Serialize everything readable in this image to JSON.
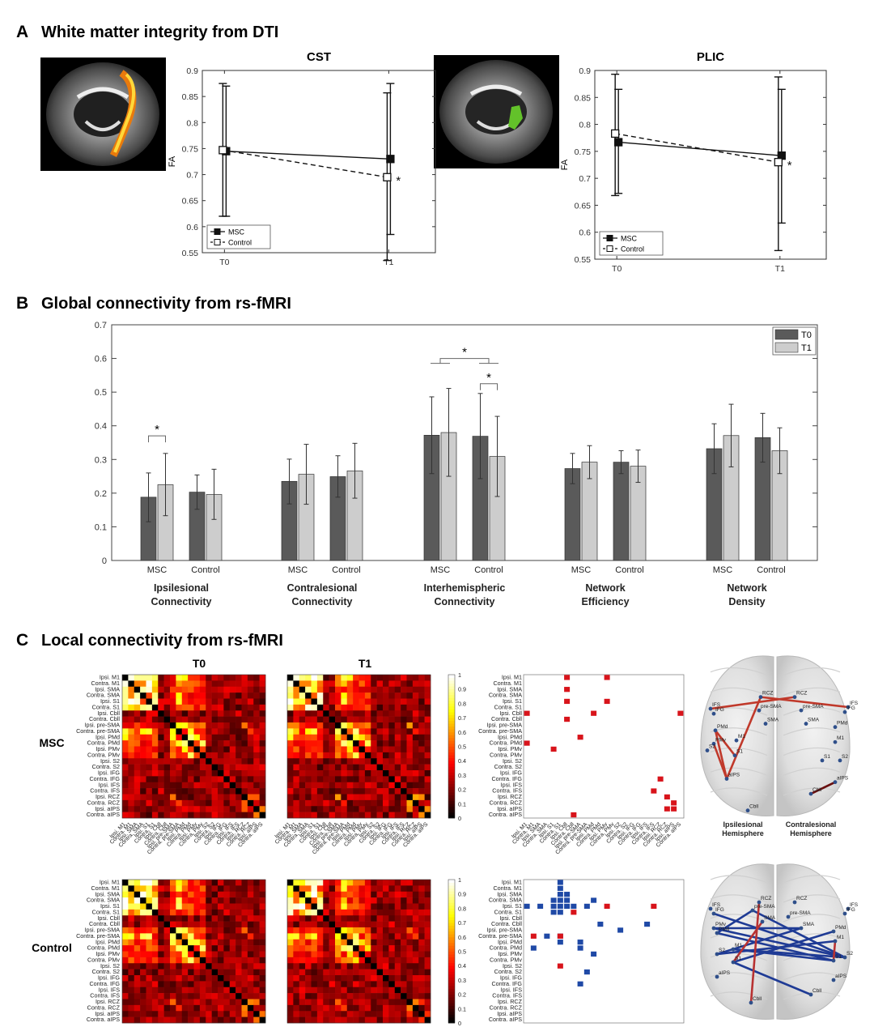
{
  "panels": {
    "A": {
      "letter": "A",
      "title": "White matter integrity from DTI"
    },
    "B": {
      "letter": "B",
      "title": "Global connectivity from rs-fMRI"
    },
    "C": {
      "letter": "C",
      "title": "Local connectivity from rs-fMRI"
    }
  },
  "chart_data": [
    {
      "id": "cst",
      "type": "line",
      "title": "CST",
      "ylabel": "FA",
      "categories": [
        "T0",
        "T1"
      ],
      "ylim": [
        0.55,
        0.9
      ],
      "yticks": [
        0.55,
        0.6,
        0.65,
        0.7,
        0.75,
        0.8,
        0.85,
        0.9
      ],
      "series": [
        {
          "name": "MSC",
          "values": [
            0.745,
            0.73
          ],
          "err_low": [
            0.62,
            0.585
          ],
          "err_high": [
            0.87,
            0.875
          ],
          "line": "solid",
          "marker": "filled-square"
        },
        {
          "name": "Control",
          "values": [
            0.747,
            0.695
          ],
          "err_low": [
            0.62,
            0.535
          ],
          "err_high": [
            0.875,
            0.857
          ],
          "line": "dashed",
          "marker": "open-square"
        }
      ],
      "annotations": [
        {
          "text": "*",
          "at": "T1"
        }
      ],
      "legend_position": "bottom-left"
    },
    {
      "id": "plic",
      "type": "line",
      "title": "PLIC",
      "ylabel": "FA",
      "categories": [
        "T0",
        "T1"
      ],
      "ylim": [
        0.55,
        0.9
      ],
      "yticks": [
        0.55,
        0.6,
        0.65,
        0.7,
        0.75,
        0.8,
        0.85,
        0.9
      ],
      "series": [
        {
          "name": "MSC",
          "values": [
            0.767,
            0.742
          ],
          "err_low": [
            0.672,
            0.617
          ],
          "err_high": [
            0.865,
            0.865
          ],
          "line": "solid",
          "marker": "filled-square"
        },
        {
          "name": "Control",
          "values": [
            0.783,
            0.73
          ],
          "err_low": [
            0.668,
            0.566
          ],
          "err_high": [
            0.893,
            0.888
          ],
          "line": "dashed",
          "marker": "open-square"
        }
      ],
      "annotations": [
        {
          "text": "*",
          "at": "T1"
        }
      ],
      "legend_position": "bottom-left"
    },
    {
      "id": "global",
      "type": "bar",
      "ylim": [
        0,
        0.7
      ],
      "yticks": [
        0,
        0.1,
        0.2,
        0.3,
        0.4,
        0.5,
        0.6,
        0.7
      ],
      "legend": [
        "T0",
        "T1"
      ],
      "legend_position": "top-right",
      "groups": [
        {
          "label": [
            "Ipsilesional",
            "Connectivity"
          ],
          "bars": [
            {
              "name": "MSC",
              "t0": 0.188,
              "t0e": [
                0.115,
                0.26
              ],
              "t1": 0.225,
              "t1e": [
                0.133,
                0.318
              ]
            },
            {
              "name": "Control",
              "t0": 0.203,
              "t0e": [
                0.152,
                0.254
              ],
              "t1": 0.196,
              "t1e": [
                0.122,
                0.271
              ]
            }
          ]
        },
        {
          "label": [
            "Contralesional",
            "Connectivity"
          ],
          "bars": [
            {
              "name": "MSC",
              "t0": 0.235,
              "t0e": [
                0.168,
                0.301
              ],
              "t1": 0.256,
              "t1e": [
                0.167,
                0.345
              ]
            },
            {
              "name": "Control",
              "t0": 0.249,
              "t0e": [
                0.188,
                0.311
              ],
              "t1": 0.266,
              "t1e": [
                0.185,
                0.348
              ]
            }
          ]
        },
        {
          "label": [
            "Interhemispheric",
            "Connectivity"
          ],
          "bars": [
            {
              "name": "MSC",
              "t0": 0.372,
              "t0e": [
                0.258,
                0.486
              ],
              "t1": 0.38,
              "t1e": [
                0.25,
                0.511
              ]
            },
            {
              "name": "Control",
              "t0": 0.369,
              "t0e": [
                0.243,
                0.496
              ],
              "t1": 0.309,
              "t1e": [
                0.19,
                0.428
              ]
            }
          ]
        },
        {
          "label": [
            "Network",
            "Efficiency"
          ],
          "bars": [
            {
              "name": "MSC",
              "t0": 0.273,
              "t0e": [
                0.228,
                0.318
              ],
              "t1": 0.292,
              "t1e": [
                0.243,
                0.341
              ]
            },
            {
              "name": "Control",
              "t0": 0.292,
              "t0e": [
                0.258,
                0.326
              ],
              "t1": 0.28,
              "t1e": [
                0.232,
                0.328
              ]
            }
          ]
        },
        {
          "label": [
            "Network",
            "Density"
          ],
          "bars": [
            {
              "name": "MSC",
              "t0": 0.332,
              "t0e": [
                0.258,
                0.406
              ],
              "t1": 0.371,
              "t1e": [
                0.278,
                0.464
              ]
            },
            {
              "name": "Control",
              "t0": 0.365,
              "t0e": [
                0.292,
                0.437
              ],
              "t1": 0.326,
              "t1e": [
                0.258,
                0.394
              ]
            }
          ]
        }
      ],
      "significance": [
        {
          "text": "*",
          "group": 0,
          "between": "MSC T0 vs MSC T1"
        },
        {
          "text": "*",
          "group": 2,
          "between": "MSC vs Control"
        },
        {
          "text": "*",
          "group": 2,
          "between": "Control T0 vs Control T1"
        }
      ]
    },
    {
      "id": "local",
      "type": "heatmap",
      "column_titles": [
        "T0",
        "T1"
      ],
      "row_titles": [
        "MSC",
        "Control"
      ],
      "regions": [
        "Ipsi. M1",
        "Contra. M1",
        "Ipsi. SMA",
        "Contra. SMA",
        "Ipsi. S1",
        "Contra. S1",
        "Ipsi. Cbll",
        "Contra. Cbll",
        "Ipsi. pre-SMA",
        "Contra. pre-SMA",
        "Ipsi. PMd",
        "Contra. PMd",
        "Ipsi. PMv",
        "Contra. PMv",
        "Ipsi. S2",
        "Contra. S2",
        "Ipsi. IFG",
        "Contra. IFG",
        "Ipsi. IFS",
        "Contra. IFS",
        "Ipsi. RCZ",
        "Contra. RCZ",
        "Ipsi. aIPS",
        "Contra. aIPS"
      ],
      "colorbar_ticks": [
        0,
        0.1,
        0.2,
        0.3,
        0.4,
        0.5,
        0.6,
        0.7,
        0.8,
        0.9,
        1
      ],
      "msc_changes": {
        "color": "#d8141b",
        "cells": [
          [
            0,
            6
          ],
          [
            0,
            12
          ],
          [
            2,
            6
          ],
          [
            4,
            6
          ],
          [
            4,
            12
          ],
          [
            6,
            0
          ],
          [
            6,
            10
          ],
          [
            6,
            23
          ],
          [
            7,
            6
          ],
          [
            10,
            8
          ],
          [
            11,
            0
          ],
          [
            12,
            4
          ],
          [
            17,
            20
          ],
          [
            19,
            19
          ],
          [
            20,
            21
          ],
          [
            21,
            22
          ],
          [
            22,
            21
          ],
          [
            22,
            22
          ],
          [
            23,
            7
          ]
        ]
      },
      "control_changes": {
        "color": "#1f49a6",
        "cells": [
          [
            0,
            5
          ],
          [
            1,
            5
          ],
          [
            2,
            5
          ],
          [
            2,
            6
          ],
          [
            3,
            4
          ],
          [
            3,
            5
          ],
          [
            3,
            6
          ],
          [
            3,
            10
          ],
          [
            4,
            0
          ],
          [
            4,
            2
          ],
          [
            4,
            4
          ],
          [
            4,
            5
          ],
          [
            4,
            6
          ],
          [
            4,
            7
          ],
          [
            4,
            9
          ],
          [
            5,
            4
          ],
          [
            5,
            5
          ],
          [
            7,
            11
          ],
          [
            7,
            18
          ],
          [
            8,
            14
          ],
          [
            9,
            3
          ],
          [
            9,
            5
          ],
          [
            10,
            5
          ],
          [
            10,
            8
          ],
          [
            11,
            1
          ],
          [
            11,
            8
          ],
          [
            12,
            10
          ],
          [
            15,
            9
          ],
          [
            17,
            8
          ]
        ],
        "red_cells": [
          [
            4,
            12
          ],
          [
            4,
            19
          ],
          [
            5,
            7
          ],
          [
            9,
            1
          ],
          [
            9,
            5
          ],
          [
            14,
            5
          ]
        ]
      },
      "brain_msc": {
        "nodes": [
          {
            "label": "IFS",
            "x": 0.1,
            "y": 0.34
          },
          {
            "label": "IFG",
            "x": 0.12,
            "y": 0.37
          },
          {
            "label": "RCZ",
            "x": 0.41,
            "y": 0.27
          },
          {
            "label": "pre-SMA",
            "x": 0.4,
            "y": 0.35
          },
          {
            "label": "SMA",
            "x": 0.44,
            "y": 0.43
          },
          {
            "label": "PMd",
            "x": 0.13,
            "y": 0.47
          },
          {
            "label": "PMv",
            "x": 0.12,
            "y": 0.55
          },
          {
            "label": "M1",
            "x": 0.26,
            "y": 0.53
          },
          {
            "label": "S2",
            "x": 0.08,
            "y": 0.59
          },
          {
            "label": "S1",
            "x": 0.25,
            "y": 0.62
          },
          {
            "label": "aIPS",
            "x": 0.2,
            "y": 0.76
          },
          {
            "label": "Cbll",
            "x": 0.33,
            "y": 0.95
          },
          {
            "label": "RCZ",
            "x": 0.62,
            "y": 0.27
          },
          {
            "label": "pre-SMA",
            "x": 0.66,
            "y": 0.35
          },
          {
            "label": "SMA",
            "x": 0.69,
            "y": 0.43
          },
          {
            "label": "IFS",
            "x": 0.95,
            "y": 0.33
          },
          {
            "label": "IFG",
            "x": 0.93,
            "y": 0.36
          },
          {
            "label": "PMd",
            "x": 0.87,
            "y": 0.45
          },
          {
            "label": "M1",
            "x": 0.87,
            "y": 0.54
          },
          {
            "label": "S1",
            "x": 0.79,
            "y": 0.65
          },
          {
            "label": "S2",
            "x": 0.9,
            "y": 0.65
          },
          {
            "label": "aIPS",
            "x": 0.87,
            "y": 0.78
          },
          {
            "label": "Cbll",
            "x": 0.72,
            "y": 0.85
          }
        ],
        "edges": [
          [
            0,
            12,
            "#c0392b"
          ],
          [
            2,
            15,
            "#c0392b"
          ],
          [
            5,
            9,
            "#c0392b"
          ],
          [
            6,
            10,
            "#c0392b"
          ],
          [
            5,
            10,
            "#c0392b"
          ],
          [
            2,
            10,
            "#c0392b"
          ],
          [
            21,
            22,
            "#6a1010"
          ]
        ],
        "hemisphere_labels": [
          [
            "Ipsilesional",
            "Hemisphere"
          ],
          [
            "Contralesional",
            "Hemisphere"
          ]
        ]
      },
      "brain_control": {
        "nodes": [
          {
            "label": "IFS",
            "x": 0.1,
            "y": 0.3
          },
          {
            "label": "IFG",
            "x": 0.12,
            "y": 0.33
          },
          {
            "label": "RCZ",
            "x": 0.4,
            "y": 0.26
          },
          {
            "label": "pre-SMA",
            "x": 0.36,
            "y": 0.31
          },
          {
            "label": "SMA",
            "x": 0.42,
            "y": 0.38
          },
          {
            "label": "PMd",
            "x": 0.14,
            "y": 0.45
          },
          {
            "label": "PMv",
            "x": 0.12,
            "y": 0.42
          },
          {
            "label": "M1",
            "x": 0.24,
            "y": 0.55
          },
          {
            "label": "S2",
            "x": 0.14,
            "y": 0.58
          },
          {
            "label": "S1",
            "x": 0.24,
            "y": 0.63
          },
          {
            "label": "aIPS",
            "x": 0.14,
            "y": 0.72
          },
          {
            "label": "Cbll",
            "x": 0.35,
            "y": 0.88
          },
          {
            "label": "RCZ",
            "x": 0.62,
            "y": 0.26
          },
          {
            "label": "pre-SMA",
            "x": 0.58,
            "y": 0.35
          },
          {
            "label": "SMA",
            "x": 0.66,
            "y": 0.42
          },
          {
            "label": "IFS",
            "x": 0.95,
            "y": 0.3
          },
          {
            "label": "IFG",
            "x": 0.93,
            "y": 0.33
          },
          {
            "label": "PMd",
            "x": 0.86,
            "y": 0.44
          },
          {
            "label": "M1",
            "x": 0.87,
            "y": 0.5
          },
          {
            "label": "S1",
            "x": 0.86,
            "y": 0.62
          },
          {
            "label": "S2",
            "x": 0.93,
            "y": 0.6
          },
          {
            "label": "aIPS",
            "x": 0.86,
            "y": 0.74
          },
          {
            "label": "Cbll",
            "x": 0.72,
            "y": 0.83
          }
        ],
        "edges": [
          [
            1,
            20,
            "#1f3b95"
          ],
          [
            6,
            20,
            "#1f3b95"
          ],
          [
            5,
            19,
            "#1f3b95"
          ],
          [
            7,
            19,
            "#1f3b95"
          ],
          [
            8,
            18,
            "#1f3b95"
          ],
          [
            9,
            17,
            "#1f3b95"
          ],
          [
            7,
            20,
            "#1f3b95"
          ],
          [
            3,
            20,
            "#1f3b95"
          ],
          [
            6,
            14,
            "#1f3b95"
          ],
          [
            8,
            14,
            "#1f3b95"
          ],
          [
            9,
            22,
            "#1f3b95"
          ],
          [
            5,
            3,
            "#1f3b95"
          ],
          [
            2,
            11,
            "#b83232"
          ],
          [
            4,
            9,
            "#b83232"
          ],
          [
            18,
            19,
            "#b83232"
          ]
        ]
      }
    }
  ]
}
